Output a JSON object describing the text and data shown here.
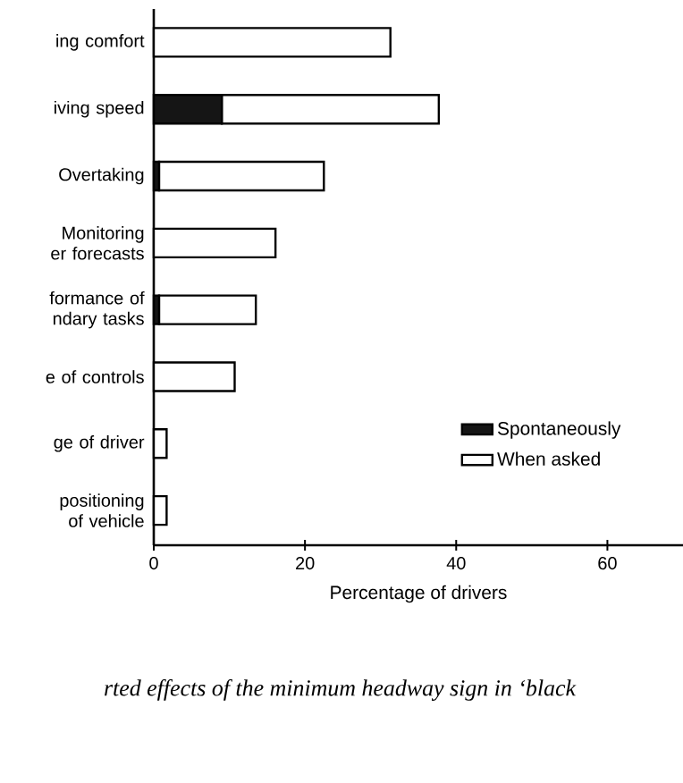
{
  "chart_data": {
    "type": "bar",
    "orientation": "horizontal",
    "stacked": true,
    "categories": [
      "ing comfort",
      "iving speed",
      "Overtaking",
      "Monitoring er forecasts",
      "formance of ndary tasks",
      "e of controls",
      "ge of driver",
      "positioning of vehicle"
    ],
    "series": [
      {
        "name": "Spontaneously",
        "color": "#151515",
        "values": [
          0,
          9,
          0.7,
          0,
          0.7,
          0,
          0,
          0
        ]
      },
      {
        "name": "When asked",
        "color": "#ffffff",
        "values": [
          31.3,
          28.7,
          21.8,
          16.1,
          12.8,
          10.7,
          1.7,
          1.7
        ]
      }
    ],
    "xlim": [
      0,
      70
    ],
    "xticks": [
      0,
      20,
      40,
      60
    ],
    "xlabel": "Percentage of drivers",
    "legend": "bottom right",
    "annotations": [
      "rted effects of the minimum headway sign in ‘black"
    ]
  }
}
